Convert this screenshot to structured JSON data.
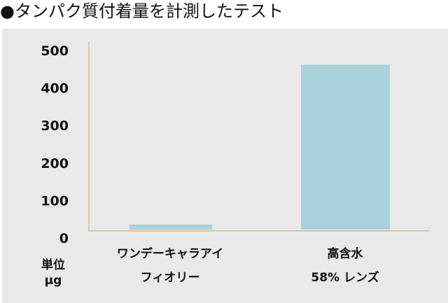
{
  "chart_data": {
    "type": "bar",
    "title": "●タンパク質付着量を計測したテスト",
    "categories": [
      [
        "ワンデーキャラアイ",
        "フィオリー"
      ],
      [
        "高含水",
        "58% レンズ"
      ]
    ],
    "values": [
      14,
      460
    ],
    "ylabel": [
      "単位",
      "μg"
    ],
    "xlabel": "",
    "ylim": [
      0,
      500
    ],
    "yticks": [
      0,
      100,
      200,
      300,
      400,
      500
    ],
    "grid": false,
    "colors": {
      "bar": "#a9d2dc",
      "axis": "#d6c7a5",
      "background": "#e9e9e9"
    }
  }
}
